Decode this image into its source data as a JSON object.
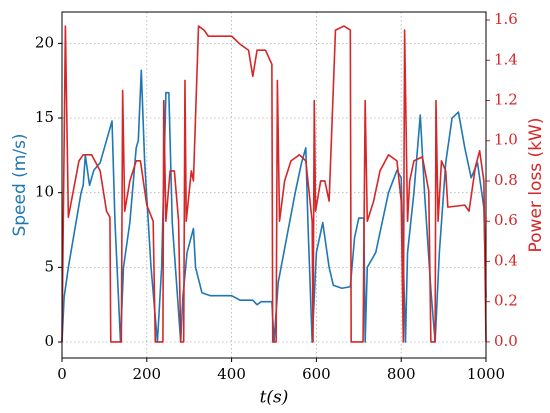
{
  "chart_data": {
    "type": "line",
    "xlabel": "t(s)",
    "ylabel": "Speed (m/s)",
    "y2label": "Power loss (kW)",
    "xlim": [
      0,
      1000
    ],
    "xticks": [
      0,
      200,
      400,
      600,
      800,
      1000
    ],
    "ylim": [
      -1.07,
      22.1
    ],
    "yticks": [
      0,
      5,
      10,
      15,
      20
    ],
    "y2lim": [
      -0.08,
      1.64
    ],
    "y2ticks": [
      {
        "value": 0,
        "label": "0.0"
      },
      0.2,
      0.4,
      0.6,
      0.8,
      {
        "value": 1,
        "label": "1.0"
      },
      1.2,
      1.4,
      1.6
    ],
    "grid": true,
    "series": [
      {
        "name": "Speed (m/s)",
        "color": "#1f77b4",
        "axis": "y",
        "x": [
          0,
          5,
          15,
          30,
          45,
          50,
          55,
          65,
          75,
          90,
          105,
          118,
          125,
          138,
          145,
          160,
          175,
          180,
          187,
          195,
          210,
          225,
          235,
          245,
          252,
          260,
          280,
          285,
          295,
          310,
          315,
          330,
          350,
          400,
          420,
          450,
          460,
          470,
          495,
          500,
          510,
          530,
          550,
          565,
          575,
          580,
          590,
          600,
          615,
          630,
          640,
          660,
          680,
          690,
          700,
          712,
          715,
          720,
          740,
          755,
          770,
          790,
          800,
          810,
          815,
          830,
          845,
          855,
          870,
          880,
          890,
          905,
          920,
          935,
          950,
          965,
          980,
          995,
          1000
        ],
        "values": [
          0,
          3,
          5,
          7.5,
          10,
          10.5,
          12.5,
          10.5,
          11.5,
          12,
          13.5,
          14.8,
          8,
          0,
          5,
          8,
          13,
          13.5,
          18.2,
          12,
          5,
          0,
          5,
          16.7,
          16.7,
          8,
          0,
          3,
          6,
          7.6,
          5,
          3.3,
          3.1,
          3.1,
          2.8,
          2.8,
          2.5,
          2.7,
          2.7,
          0,
          4,
          7,
          10,
          12,
          13,
          8,
          0,
          6,
          8,
          5,
          3.8,
          3.6,
          3.7,
          7,
          8.3,
          8.3,
          0,
          5,
          6,
          8,
          10,
          11.5,
          11,
          0,
          6,
          10,
          15.2,
          10,
          3.5,
          0,
          6,
          12,
          15,
          15.4,
          13,
          11,
          12,
          9,
          3
        ]
      },
      {
        "name": "Power loss (kW)",
        "color": "#d62728",
        "axis": "y2",
        "x": [
          0,
          8,
          15,
          40,
          50,
          70,
          90,
          105,
          113,
          115,
          140,
          143,
          148,
          160,
          175,
          185,
          200,
          215,
          220,
          238,
          240,
          245,
          255,
          265,
          275,
          280,
          287,
          290,
          293,
          305,
          310,
          322,
          335,
          345,
          400,
          420,
          440,
          450,
          460,
          480,
          495,
          497,
          505,
          508,
          513,
          525,
          540,
          560,
          575,
          585,
          590,
          592,
          595,
          598,
          610,
          620,
          630,
          645,
          665,
          680,
          682,
          710,
          715,
          720,
          735,
          750,
          770,
          790,
          800,
          805,
          808,
          815,
          820,
          830,
          850,
          865,
          870,
          880,
          882,
          887,
          895,
          905,
          910,
          950,
          960,
          975,
          985,
          995,
          1000
        ],
        "values": [
          0,
          1.57,
          0.62,
          0.9,
          0.93,
          0.93,
          0.85,
          0.65,
          0.62,
          0,
          0,
          1.25,
          0.65,
          0.8,
          0.9,
          0.9,
          0.68,
          0.6,
          0,
          0,
          1.2,
          0.6,
          0.85,
          0.85,
          0.6,
          0,
          0,
          1.3,
          0.6,
          0.85,
          0.8,
          1.57,
          1.55,
          1.52,
          1.52,
          1.48,
          1.45,
          1.32,
          1.45,
          1.45,
          1.38,
          0,
          0,
          1.3,
          0.6,
          0.8,
          0.9,
          0.93,
          0.9,
          0.7,
          0.6,
          0,
          1.2,
          0.65,
          0.8,
          0.8,
          0.7,
          1.55,
          1.57,
          1.55,
          0,
          0,
          1.2,
          0.6,
          0.7,
          0.85,
          0.93,
          0.9,
          0.7,
          0,
          1.55,
          0.6,
          0.8,
          0.9,
          0.92,
          0.75,
          0,
          0,
          1.2,
          0.6,
          0.9,
          0.85,
          0.67,
          0.68,
          0.65,
          0.87,
          0.95,
          0.8,
          0
        ]
      }
    ]
  }
}
